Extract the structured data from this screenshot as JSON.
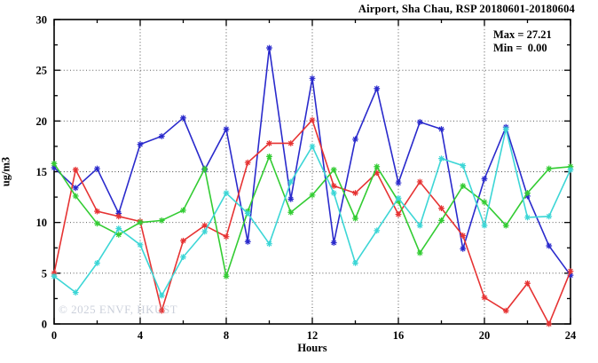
{
  "title": "Airport, Sha Chau, RSP 20180601-20180604",
  "watermark": "© 2025 ENVF, HKUST",
  "chart_data": {
    "type": "line",
    "title": "Airport, Sha Chau, RSP 20180601-20180604",
    "xlabel": "Hours",
    "ylabel": "ug/m3",
    "xlim": [
      0,
      24
    ],
    "ylim": [
      0,
      30
    ],
    "xticks_major": [
      0,
      4,
      8,
      12,
      16,
      20,
      24
    ],
    "xtick_minor_step": 2,
    "yticks_major": [
      0,
      5,
      10,
      15,
      20,
      25,
      30
    ],
    "ytick_minor_step": 2.5,
    "grid": "dotted-at-major-ticks",
    "legend_position": "top-right-inside",
    "annotations": [
      "Max = 27.21",
      "Min =  0.00"
    ],
    "max_value": 27.21,
    "min_value": 0.0,
    "x": [
      0,
      1,
      2,
      3,
      4,
      5,
      6,
      7,
      8,
      9,
      10,
      11,
      12,
      13,
      14,
      15,
      16,
      17,
      18,
      19,
      20,
      21,
      22,
      23,
      24
    ],
    "series": [
      {
        "name": "blue",
        "color": "#2a2acc",
        "values": [
          15.4,
          13.4,
          15.3,
          10.9,
          17.7,
          18.5,
          20.3,
          15.2,
          19.2,
          8.1,
          27.2,
          12.3,
          24.2,
          8.0,
          18.2,
          23.2,
          13.9,
          19.9,
          19.2,
          7.4,
          14.3,
          19.4,
          12.6,
          7.7,
          4.8
        ]
      },
      {
        "name": "red",
        "color": "#e63333",
        "values": [
          5.0,
          15.2,
          11.1,
          10.6,
          10.1,
          1.3,
          8.2,
          9.7,
          8.6,
          15.9,
          17.8,
          17.8,
          20.1,
          13.6,
          12.9,
          14.9,
          10.8,
          14.0,
          11.4,
          8.7,
          2.6,
          1.3,
          4.0,
          0.0,
          5.2
        ]
      },
      {
        "name": "green",
        "color": "#33cc33",
        "values": [
          15.8,
          12.6,
          9.9,
          8.8,
          10.0,
          10.2,
          11.2,
          15.3,
          4.7,
          11.1,
          16.5,
          11.0,
          12.7,
          15.2,
          10.4,
          15.5,
          12.1,
          7.0,
          10.2,
          13.6,
          12.0,
          9.7,
          12.9,
          15.3,
          15.5
        ]
      },
      {
        "name": "cyan",
        "color": "#3cd6d6",
        "values": [
          4.7,
          3.1,
          6.0,
          9.4,
          7.8,
          2.8,
          6.6,
          9.1,
          12.9,
          10.9,
          7.9,
          14.0,
          17.5,
          12.9,
          6.0,
          9.2,
          12.4,
          9.7,
          16.3,
          15.6,
          9.7,
          19.2,
          10.5,
          10.6,
          15.2
        ]
      }
    ]
  }
}
